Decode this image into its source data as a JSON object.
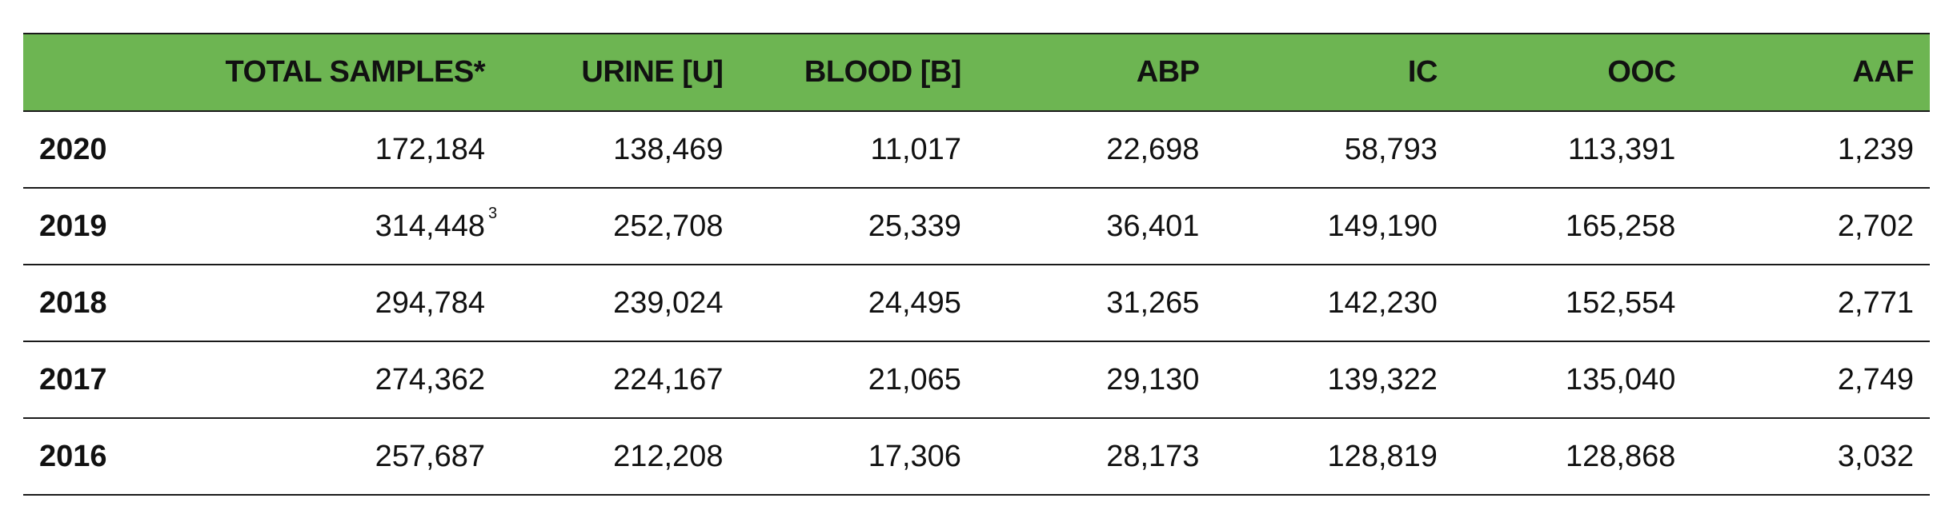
{
  "table": {
    "headers": [
      "",
      "TOTAL SAMPLES*",
      "URINE [U]",
      "BLOOD [B]",
      "ABP",
      "IC",
      "OOC",
      "AAF"
    ],
    "rows": [
      {
        "year": "2020",
        "total": "172,184",
        "total_note": "",
        "urine": "138,469",
        "blood": "11,017",
        "abp": "22,698",
        "ic": "58,793",
        "ooc": "113,391",
        "aaf": "1,239"
      },
      {
        "year": "2019",
        "total": "314,448",
        "total_note": "3",
        "urine": "252,708",
        "blood": "25,339",
        "abp": "36,401",
        "ic": "149,190",
        "ooc": "165,258",
        "aaf": "2,702"
      },
      {
        "year": "2018",
        "total": "294,784",
        "total_note": "",
        "urine": "239,024",
        "blood": "24,495",
        "abp": "31,265",
        "ic": "142,230",
        "ooc": "152,554",
        "aaf": "2,771"
      },
      {
        "year": "2017",
        "total": "274,362",
        "total_note": "",
        "urine": "224,167",
        "blood": "21,065",
        "abp": "29,130",
        "ic": "139,322",
        "ooc": "135,040",
        "aaf": "2,749"
      },
      {
        "year": "2016",
        "total": "257,687",
        "total_note": "",
        "urine": "212,208",
        "blood": "17,306",
        "abp": "28,173",
        "ic": "128,819",
        "ooc": "128,868",
        "aaf": "3,032"
      }
    ]
  },
  "colors": {
    "header_bg": "#6db552",
    "rule": "#1a1a1a"
  }
}
